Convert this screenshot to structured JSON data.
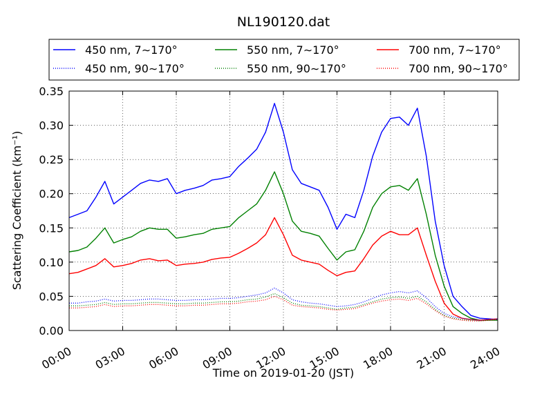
{
  "chart_data": {
    "type": "line",
    "title": "NL190120.dat",
    "xlabel": "Time on 2019-01-20 (JST)",
    "ylabel": "Scattering Coefficient (km⁻¹)",
    "xlim": [
      "00:00",
      "24:00"
    ],
    "ylim": [
      0.0,
      0.35
    ],
    "xticks": [
      "00:00",
      "03:00",
      "06:00",
      "09:00",
      "12:00",
      "15:00",
      "18:00",
      "21:00",
      "24:00"
    ],
    "yticks": [
      "0.00",
      "0.05",
      "0.10",
      "0.15",
      "0.20",
      "0.25",
      "0.30",
      "0.35"
    ],
    "grid": true,
    "legend_position": "top (above plot), 3 columns",
    "x": [
      "00:00",
      "00:30",
      "01:00",
      "01:30",
      "02:00",
      "02:30",
      "03:00",
      "03:30",
      "04:00",
      "04:30",
      "05:00",
      "05:30",
      "06:00",
      "06:30",
      "07:00",
      "07:30",
      "08:00",
      "08:30",
      "09:00",
      "09:30",
      "10:00",
      "10:30",
      "11:00",
      "11:30",
      "12:00",
      "12:30",
      "13:00",
      "13:30",
      "14:00",
      "14:30",
      "15:00",
      "15:30",
      "16:00",
      "16:30",
      "17:00",
      "17:30",
      "18:00",
      "18:30",
      "19:00",
      "19:30",
      "20:00",
      "20:30",
      "21:00",
      "21:30",
      "22:00",
      "22:30",
      "23:00",
      "23:30",
      "24:00"
    ],
    "series": [
      {
        "name": "450 nm, 7∼170°",
        "color": "#0000ff",
        "style": "solid",
        "values": [
          0.165,
          0.17,
          0.175,
          0.195,
          0.218,
          0.185,
          0.195,
          0.205,
          0.215,
          0.22,
          0.218,
          0.222,
          0.2,
          0.205,
          0.208,
          0.212,
          0.22,
          0.222,
          0.225,
          0.24,
          0.252,
          0.265,
          0.29,
          0.332,
          0.29,
          0.235,
          0.215,
          0.21,
          0.205,
          0.18,
          0.148,
          0.17,
          0.165,
          0.205,
          0.255,
          0.29,
          0.31,
          0.312,
          0.3,
          0.325,
          0.255,
          0.16,
          0.095,
          0.05,
          0.035,
          0.022,
          0.018,
          0.017,
          0.016
        ]
      },
      {
        "name": "550 nm, 7∼170°",
        "color": "#008000",
        "style": "solid",
        "values": [
          0.115,
          0.117,
          0.122,
          0.135,
          0.15,
          0.128,
          0.133,
          0.137,
          0.145,
          0.15,
          0.148,
          0.148,
          0.135,
          0.137,
          0.14,
          0.142,
          0.148,
          0.15,
          0.152,
          0.165,
          0.175,
          0.185,
          0.205,
          0.232,
          0.2,
          0.16,
          0.145,
          0.142,
          0.138,
          0.12,
          0.103,
          0.115,
          0.118,
          0.145,
          0.18,
          0.2,
          0.21,
          0.212,
          0.205,
          0.222,
          0.17,
          0.11,
          0.065,
          0.035,
          0.025,
          0.018,
          0.015,
          0.015,
          0.015
        ]
      },
      {
        "name": "700 nm, 7∼170°",
        "color": "#ff0000",
        "style": "solid",
        "values": [
          0.083,
          0.085,
          0.09,
          0.095,
          0.105,
          0.093,
          0.095,
          0.098,
          0.103,
          0.105,
          0.102,
          0.103,
          0.095,
          0.097,
          0.098,
          0.1,
          0.104,
          0.106,
          0.107,
          0.113,
          0.12,
          0.128,
          0.14,
          0.165,
          0.14,
          0.11,
          0.103,
          0.1,
          0.097,
          0.088,
          0.08,
          0.085,
          0.087,
          0.105,
          0.125,
          0.138,
          0.145,
          0.14,
          0.14,
          0.15,
          0.11,
          0.072,
          0.04,
          0.024,
          0.018,
          0.016,
          0.015,
          0.016,
          0.017
        ]
      },
      {
        "name": "450 nm, 90∼170°",
        "color": "#0000ff",
        "style": "dotted",
        "values": [
          0.04,
          0.04,
          0.042,
          0.043,
          0.046,
          0.043,
          0.044,
          0.044,
          0.045,
          0.046,
          0.046,
          0.045,
          0.044,
          0.044,
          0.045,
          0.045,
          0.046,
          0.047,
          0.047,
          0.048,
          0.05,
          0.052,
          0.055,
          0.062,
          0.055,
          0.045,
          0.042,
          0.04,
          0.039,
          0.037,
          0.035,
          0.036,
          0.038,
          0.042,
          0.047,
          0.052,
          0.055,
          0.057,
          0.055,
          0.058,
          0.048,
          0.035,
          0.025,
          0.02,
          0.018,
          0.016,
          0.015,
          0.016,
          0.017
        ]
      },
      {
        "name": "550 nm, 90∼170°",
        "color": "#008000",
        "style": "dotted",
        "values": [
          0.036,
          0.036,
          0.037,
          0.038,
          0.041,
          0.038,
          0.039,
          0.039,
          0.04,
          0.041,
          0.041,
          0.04,
          0.039,
          0.039,
          0.04,
          0.04,
          0.041,
          0.042,
          0.042,
          0.043,
          0.045,
          0.046,
          0.049,
          0.054,
          0.048,
          0.04,
          0.037,
          0.036,
          0.035,
          0.033,
          0.031,
          0.033,
          0.034,
          0.038,
          0.042,
          0.046,
          0.048,
          0.049,
          0.047,
          0.05,
          0.042,
          0.031,
          0.022,
          0.018,
          0.016,
          0.015,
          0.014,
          0.015,
          0.016
        ]
      },
      {
        "name": "700 nm, 90∼170°",
        "color": "#ff0000",
        "style": "dotted",
        "values": [
          0.033,
          0.033,
          0.034,
          0.035,
          0.038,
          0.035,
          0.036,
          0.036,
          0.037,
          0.038,
          0.038,
          0.037,
          0.036,
          0.036,
          0.037,
          0.037,
          0.038,
          0.039,
          0.039,
          0.04,
          0.042,
          0.043,
          0.045,
          0.05,
          0.045,
          0.037,
          0.035,
          0.034,
          0.033,
          0.031,
          0.03,
          0.031,
          0.032,
          0.036,
          0.04,
          0.043,
          0.045,
          0.046,
          0.044,
          0.047,
          0.039,
          0.029,
          0.021,
          0.017,
          0.015,
          0.014,
          0.014,
          0.015,
          0.016
        ]
      }
    ]
  }
}
